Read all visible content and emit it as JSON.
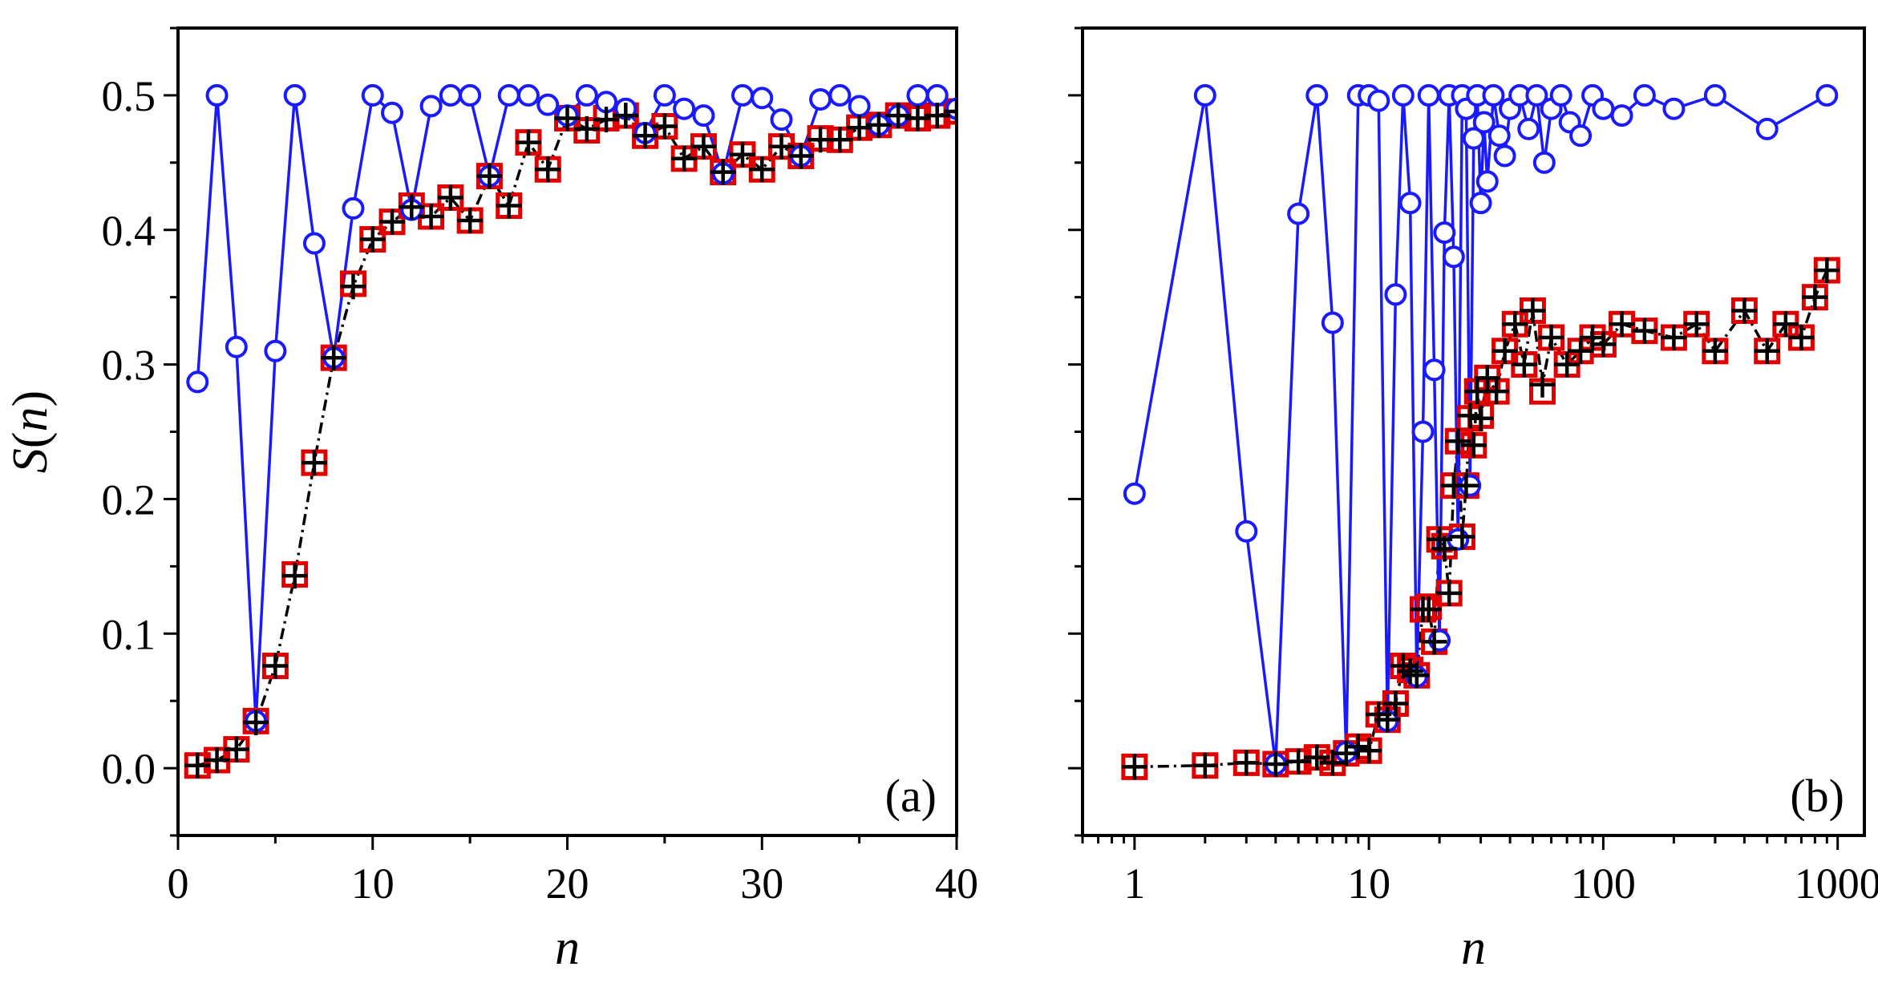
{
  "chart_data": [
    {
      "type": "line",
      "panel_label": "(a)",
      "xlabel": "n",
      "ylabel": "S(n)",
      "xscale": "linear",
      "xlim": [
        0,
        40
      ],
      "ylim": [
        -0.05,
        0.55
      ],
      "x_ticks": [
        0,
        10,
        20,
        30,
        40
      ],
      "x_tick_labels": [
        "0",
        "10",
        "20",
        "30",
        "40"
      ],
      "y_ticks": [
        0.0,
        0.1,
        0.2,
        0.3,
        0.4,
        0.5
      ],
      "y_tick_labels": [
        "0.0",
        "0.1",
        "0.2",
        "0.3",
        "0.4",
        "0.5"
      ],
      "legend": "none",
      "series": [
        {
          "name": "blue-circles",
          "color": "#1a1aff",
          "marker": "circle",
          "line": "solid",
          "x": [
            1,
            2,
            3,
            4,
            5,
            6,
            7,
            8,
            9,
            10,
            11,
            12,
            13,
            14,
            15,
            16,
            17,
            18,
            19,
            20,
            21,
            22,
            23,
            24,
            25,
            26,
            27,
            28,
            29,
            30,
            31,
            32,
            33,
            34,
            35,
            36,
            37,
            38,
            39,
            40
          ],
          "y": [
            0.287,
            0.5,
            0.313,
            0.035,
            0.31,
            0.5,
            0.39,
            0.305,
            0.416,
            0.5,
            0.487,
            0.415,
            0.492,
            0.5,
            0.5,
            0.44,
            0.5,
            0.5,
            0.493,
            0.485,
            0.5,
            0.495,
            0.49,
            0.472,
            0.5,
            0.49,
            0.485,
            0.442,
            0.5,
            0.498,
            0.482,
            0.455,
            0.497,
            0.5,
            0.492,
            0.478,
            0.485,
            0.5,
            0.5,
            0.49
          ]
        },
        {
          "name": "red-squares",
          "color": "#e00000",
          "marker": "square",
          "line": "none",
          "x": [
            1,
            2,
            3,
            4,
            5,
            6,
            7,
            8,
            9,
            10,
            11,
            12,
            13,
            14,
            15,
            16,
            17,
            18,
            19,
            20,
            21,
            22,
            23,
            24,
            25,
            26,
            27,
            28,
            29,
            30,
            31,
            32,
            33,
            34,
            35,
            36,
            37,
            38,
            39,
            40
          ],
          "y": [
            0.002,
            0.006,
            0.014,
            0.035,
            0.076,
            0.144,
            0.227,
            0.305,
            0.36,
            0.393,
            0.406,
            0.418,
            0.41,
            0.424,
            0.407,
            0.44,
            0.418,
            0.465,
            0.445,
            0.483,
            0.474,
            0.483,
            0.485,
            0.47,
            0.477,
            0.453,
            0.462,
            0.443,
            0.456,
            0.445,
            0.462,
            0.455,
            0.468,
            0.467,
            0.476,
            0.478,
            0.485,
            0.483,
            0.485,
            0.488
          ]
        },
        {
          "name": "black-crosses",
          "color": "#000000",
          "marker": "plus",
          "line": "dashed",
          "x": [
            1,
            2,
            3,
            4,
            5,
            6,
            7,
            8,
            9,
            10,
            11,
            12,
            13,
            14,
            15,
            16,
            17,
            18,
            19,
            20,
            21,
            22,
            23,
            24,
            25,
            26,
            27,
            28,
            29,
            30,
            31,
            32,
            33,
            34,
            35,
            36,
            37,
            38,
            39,
            40
          ],
          "y": [
            0.002,
            0.006,
            0.014,
            0.034,
            0.076,
            0.143,
            0.227,
            0.305,
            0.358,
            0.393,
            0.406,
            0.417,
            0.41,
            0.424,
            0.407,
            0.44,
            0.418,
            0.465,
            0.445,
            0.483,
            0.475,
            0.482,
            0.485,
            0.47,
            0.477,
            0.453,
            0.462,
            0.443,
            0.456,
            0.445,
            0.462,
            0.455,
            0.467,
            0.467,
            0.476,
            0.478,
            0.485,
            0.483,
            0.485,
            0.488
          ]
        }
      ]
    },
    {
      "type": "line",
      "panel_label": "(b)",
      "xlabel": "n",
      "ylabel": "",
      "xscale": "log",
      "xlim": [
        0.6,
        1300
      ],
      "ylim": [
        -0.05,
        0.55
      ],
      "x_ticks": [
        1,
        10,
        100,
        1000
      ],
      "x_tick_labels": [
        "1",
        "10",
        "100",
        "1000"
      ],
      "y_ticks": [
        0.0,
        0.1,
        0.2,
        0.3,
        0.4,
        0.5
      ],
      "y_tick_labels": [],
      "legend": "none",
      "series": [
        {
          "name": "blue-circles",
          "color": "#1a1aff",
          "marker": "circle",
          "line": "solid",
          "x": [
            1,
            2,
            3,
            4,
            5,
            6,
            7,
            8,
            9,
            10,
            11,
            12,
            13,
            14,
            15,
            16,
            17,
            18,
            19,
            20,
            21,
            22,
            23,
            24,
            25,
            26,
            27,
            28,
            29,
            30,
            31,
            32,
            34,
            36,
            38,
            40,
            44,
            48,
            52,
            56,
            60,
            66,
            72,
            80,
            90,
            100,
            120,
            150,
            200,
            300,
            500,
            900
          ],
          "y": [
            0.204,
            0.5,
            0.176,
            0.003,
            0.412,
            0.5,
            0.331,
            0.012,
            0.5,
            0.5,
            0.496,
            0.035,
            0.352,
            0.5,
            0.42,
            0.068,
            0.25,
            0.5,
            0.296,
            0.095,
            0.398,
            0.5,
            0.38,
            0.17,
            0.5,
            0.49,
            0.21,
            0.468,
            0.5,
            0.42,
            0.48,
            0.436,
            0.5,
            0.47,
            0.455,
            0.49,
            0.5,
            0.475,
            0.5,
            0.45,
            0.49,
            0.5,
            0.48,
            0.47,
            0.5,
            0.49,
            0.485,
            0.5,
            0.49,
            0.5,
            0.475,
            0.5
          ]
        },
        {
          "name": "red-squares",
          "color": "#e00000",
          "marker": "square",
          "line": "none",
          "x": [
            1,
            2,
            3,
            4,
            5,
            6,
            7,
            8,
            9,
            10,
            11,
            12,
            13,
            14,
            15,
            16,
            17,
            18,
            19,
            20,
            21,
            22,
            23,
            24,
            25,
            26,
            27,
            28,
            29,
            30,
            32,
            35,
            38,
            42,
            46,
            50,
            55,
            60,
            70,
            80,
            90,
            100,
            120,
            150,
            200,
            250,
            300,
            400,
            500,
            600,
            700,
            800,
            900
          ],
          "y": [
            0.001,
            0.002,
            0.004,
            0.003,
            0.005,
            0.008,
            0.004,
            0.011,
            0.016,
            0.013,
            0.04,
            0.036,
            0.048,
            0.076,
            0.073,
            0.069,
            0.118,
            0.12,
            0.094,
            0.17,
            0.165,
            0.13,
            0.21,
            0.243,
            0.172,
            0.21,
            0.26,
            0.24,
            0.28,
            0.262,
            0.29,
            0.28,
            0.31,
            0.33,
            0.3,
            0.34,
            0.28,
            0.32,
            0.3,
            0.31,
            0.32,
            0.315,
            0.33,
            0.325,
            0.32,
            0.33,
            0.31,
            0.34,
            0.31,
            0.33,
            0.32,
            0.35,
            0.37
          ]
        },
        {
          "name": "black-crosses",
          "color": "#000000",
          "marker": "plus",
          "line": "dashed",
          "x": [
            1,
            2,
            3,
            4,
            5,
            6,
            7,
            8,
            9,
            10,
            11,
            12,
            13,
            14,
            15,
            16,
            17,
            18,
            19,
            20,
            21,
            22,
            23,
            24,
            25,
            26,
            27,
            28,
            29,
            30,
            32,
            35,
            38,
            42,
            46,
            50,
            55,
            60,
            70,
            80,
            90,
            100,
            120,
            150,
            200,
            250,
            300,
            400,
            500,
            600,
            700,
            800,
            900
          ],
          "y": [
            0.001,
            0.002,
            0.004,
            0.003,
            0.005,
            0.008,
            0.004,
            0.011,
            0.016,
            0.013,
            0.04,
            0.036,
            0.048,
            0.076,
            0.072,
            0.069,
            0.118,
            0.118,
            0.094,
            0.17,
            0.163,
            0.13,
            0.21,
            0.243,
            0.172,
            0.21,
            0.262,
            0.24,
            0.28,
            0.26,
            0.29,
            0.28,
            0.31,
            0.33,
            0.3,
            0.34,
            0.285,
            0.32,
            0.3,
            0.31,
            0.32,
            0.315,
            0.33,
            0.325,
            0.32,
            0.33,
            0.31,
            0.34,
            0.31,
            0.33,
            0.32,
            0.35,
            0.37
          ]
        }
      ]
    }
  ]
}
